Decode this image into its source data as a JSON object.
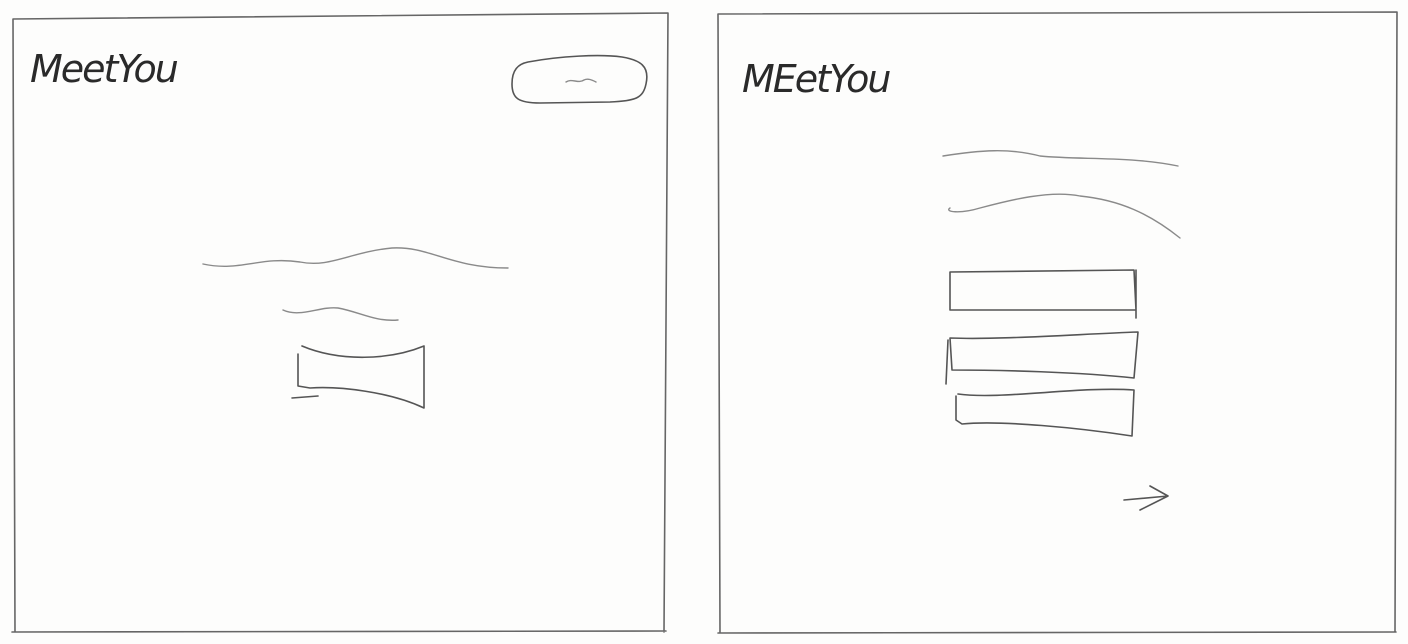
{
  "frames": [
    {
      "name": "landing-screen",
      "logo_text": "MeetYou"
    },
    {
      "name": "form-screen",
      "logo_text": "MEetYou",
      "form_fields_count": 3
    }
  ],
  "colors": {
    "paper": "#fdfdfc",
    "pencil": "#555555"
  }
}
